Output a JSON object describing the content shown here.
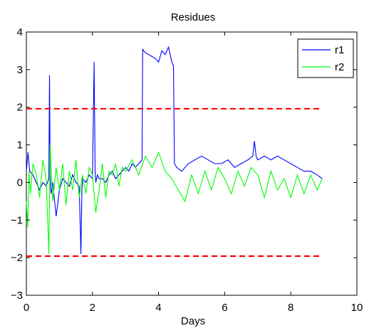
{
  "chart_data": {
    "type": "line",
    "title": "Residues",
    "xlabel": "Days",
    "ylabel": "",
    "xlim": [
      0,
      10
    ],
    "ylim": [
      -3,
      4
    ],
    "xticks": [
      "0",
      "2",
      "4",
      "6",
      "8",
      "10"
    ],
    "yticks": [
      "4",
      "3",
      "2",
      "1",
      "0",
      "−1",
      "−2",
      "−3"
    ],
    "grid": false,
    "legend_position": "top-right",
    "series": [
      {
        "name": "r1",
        "color": "#0000ff",
        "x": [
          0,
          0.05,
          0.1,
          0.2,
          0.3,
          0.4,
          0.5,
          0.6,
          0.68,
          0.7,
          0.72,
          0.75,
          0.8,
          0.9,
          1.0,
          1.1,
          1.2,
          1.3,
          1.4,
          1.5,
          1.6,
          1.65,
          1.68,
          1.7,
          1.8,
          1.9,
          2.0,
          2.05,
          2.08,
          2.1,
          2.15,
          2.2,
          2.3,
          2.4,
          2.5,
          2.6,
          2.7,
          2.8,
          2.9,
          3.0,
          3.1,
          3.2,
          3.3,
          3.4,
          3.5,
          3.52,
          3.55,
          3.6,
          3.7,
          3.8,
          3.9,
          4.0,
          4.1,
          4.2,
          4.3,
          4.4,
          4.45,
          4.48,
          4.55,
          4.7,
          4.9,
          5.1,
          5.3,
          5.5,
          5.7,
          5.9,
          6.1,
          6.3,
          6.5,
          6.7,
          6.85,
          6.9,
          6.95,
          7.0,
          7.2,
          7.4,
          7.6,
          7.8,
          8.0,
          8.2,
          8.4,
          8.6,
          8.8,
          8.95
        ],
        "y": [
          0.3,
          0.8,
          0.3,
          0.2,
          0.0,
          -0.2,
          0.0,
          -0.1,
          0.1,
          2.85,
          0.2,
          -0.3,
          0.0,
          -0.9,
          -0.2,
          0.1,
          0.0,
          -0.1,
          0.2,
          0.0,
          -0.1,
          -1.9,
          -0.2,
          0.1,
          0.0,
          0.2,
          0.1,
          3.2,
          0.3,
          0.0,
          0.2,
          0.1,
          0.1,
          0.0,
          0.2,
          0.3,
          0.1,
          0.2,
          0.3,
          0.4,
          0.3,
          0.5,
          0.4,
          0.5,
          0.6,
          3.55,
          3.5,
          3.45,
          3.4,
          3.35,
          3.3,
          3.2,
          3.5,
          3.4,
          3.6,
          3.2,
          3.1,
          0.5,
          0.4,
          0.3,
          0.5,
          0.6,
          0.7,
          0.6,
          0.5,
          0.5,
          0.6,
          0.4,
          0.5,
          0.6,
          0.7,
          1.1,
          0.7,
          0.6,
          0.7,
          0.6,
          0.7,
          0.6,
          0.5,
          0.4,
          0.3,
          0.3,
          0.2,
          0.1
        ]
      },
      {
        "name": "r2",
        "color": "#00ff00",
        "x": [
          0,
          0.04,
          0.08,
          0.12,
          0.2,
          0.3,
          0.4,
          0.5,
          0.6,
          0.68,
          0.72,
          0.76,
          0.8,
          0.9,
          1.0,
          1.1,
          1.2,
          1.3,
          1.4,
          1.5,
          1.6,
          1.7,
          1.8,
          1.9,
          2.0,
          2.1,
          2.2,
          2.3,
          2.4,
          2.5,
          2.6,
          2.7,
          2.8,
          2.9,
          3.0,
          3.2,
          3.4,
          3.6,
          3.8,
          4.0,
          4.2,
          4.4,
          4.6,
          4.8,
          5.0,
          5.2,
          5.4,
          5.6,
          5.8,
          6.0,
          6.2,
          6.4,
          6.6,
          6.8,
          7.0,
          7.2,
          7.4,
          7.6,
          7.8,
          8.0,
          8.2,
          8.4,
          8.6,
          8.8,
          8.95
        ],
        "y": [
          -0.5,
          -1.2,
          0.3,
          -0.3,
          0.5,
          0.2,
          -0.4,
          0.6,
          0.1,
          -1.9,
          1.0,
          0.2,
          -0.5,
          0.4,
          -0.2,
          0.5,
          -0.6,
          0.3,
          -0.2,
          0.6,
          -0.4,
          0.2,
          -0.3,
          0.4,
          0.2,
          -0.8,
          -0.2,
          0.5,
          -0.4,
          0.3,
          0.2,
          0.5,
          -0.1,
          0.4,
          0.3,
          0.6,
          0.2,
          0.7,
          0.4,
          0.8,
          0.3,
          0.1,
          -0.2,
          -0.5,
          0.2,
          -0.3,
          0.3,
          -0.2,
          0.4,
          0.1,
          -0.3,
          0.3,
          -0.1,
          0.4,
          0.2,
          -0.4,
          0.3,
          -0.2,
          0.1,
          -0.4,
          0.2,
          -0.3,
          0.2,
          -0.2,
          0.1
        ]
      },
      {
        "name": "",
        "color": "#ff0000",
        "dashed": true,
        "x": [
          0,
          8.95
        ],
        "y": [
          1.96,
          1.96
        ]
      },
      {
        "name": "",
        "color": "#ff0000",
        "dashed": true,
        "x": [
          0,
          8.95
        ],
        "y": [
          -1.96,
          -1.96
        ]
      }
    ]
  }
}
